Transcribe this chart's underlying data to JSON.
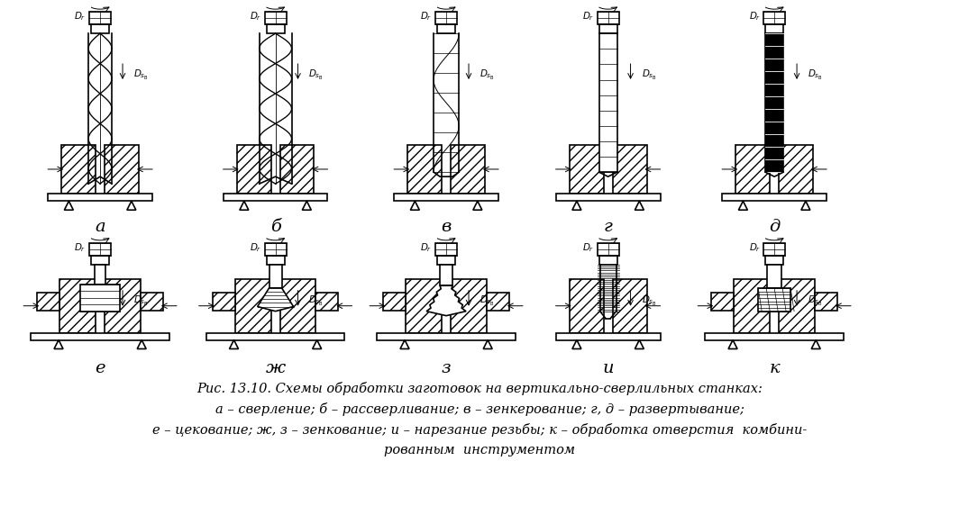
{
  "background_color": "#ffffff",
  "fig_width": 10.64,
  "fig_height": 5.62,
  "title_line1": "Рис. 13.10. Схемы обработки заготовок на вертикально-сверлильных станках:",
  "title_line2": "а – сверление; б – рассверливание; в – зенкерование; г, д – развертывание;",
  "title_line3": "е – цекование; ж, з – зенкование; и – нарезание резьбы; к – обработка отверстия  комбини-",
  "title_line4": "рованным  инструментом",
  "labels_top": [
    "а",
    "б",
    "в",
    "г",
    "д"
  ],
  "labels_bottom": [
    "е",
    "ж",
    "з",
    "и",
    "к"
  ],
  "text_color": "#000000",
  "font_size_labels": 14,
  "font_size_caption": 10.5
}
